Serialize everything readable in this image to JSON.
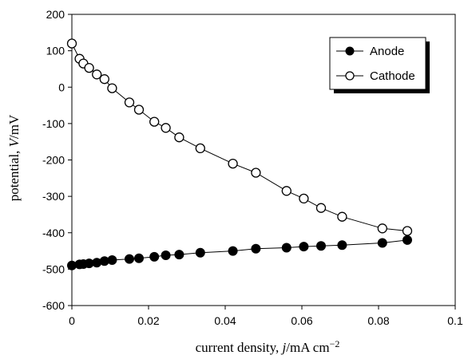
{
  "chart_data": {
    "type": "scatter",
    "title": "",
    "xlabel": "current density, j/mA cm⁻²",
    "xlabel_parts": {
      "prefix": "current density, ",
      "symbol": "j",
      "unit": "/mA cm",
      "exponent": "−2"
    },
    "ylabel": "potential, V/mV",
    "ylabel_parts": {
      "prefix": "potential, ",
      "symbol": "V",
      "unit": "/mV"
    },
    "xlim": [
      0,
      0.1
    ],
    "ylim": [
      -600,
      200
    ],
    "x_ticks": [
      0,
      0.02,
      0.04,
      0.06,
      0.08,
      0.1
    ],
    "x_tick_labels": [
      "0",
      "0.02",
      "0.04",
      "0.06",
      "0.08",
      "0.1"
    ],
    "y_ticks": [
      200,
      100,
      0,
      -100,
      -200,
      -300,
      -400,
      -500,
      -600
    ],
    "y_tick_labels": [
      "200",
      "100",
      "0",
      "-100",
      "-200",
      "-300",
      "-400",
      "-500",
      "-600"
    ],
    "grid": false,
    "legend_position": "top-right",
    "series": [
      {
        "name": "Anode",
        "marker": "filled-circle",
        "x": [
          0,
          0.002,
          0.003,
          0.0045,
          0.0065,
          0.0085,
          0.0105,
          0.015,
          0.0175,
          0.0215,
          0.0245,
          0.028,
          0.0335,
          0.042,
          0.048,
          0.056,
          0.0605,
          0.065,
          0.0705,
          0.081,
          0.0875
        ],
        "y": [
          -490,
          -487,
          -486,
          -484,
          -482,
          -478,
          -475,
          -472,
          -470,
          -466,
          -462,
          -460,
          -455,
          -450,
          -444,
          -441,
          -438,
          -436,
          -434,
          -428,
          -420
        ]
      },
      {
        "name": "Cathode",
        "marker": "open-circle",
        "x": [
          0,
          0.002,
          0.003,
          0.0045,
          0.0065,
          0.0085,
          0.0105,
          0.015,
          0.0175,
          0.0215,
          0.0245,
          0.028,
          0.0335,
          0.042,
          0.048,
          0.056,
          0.0605,
          0.065,
          0.0705,
          0.081,
          0.0875
        ],
        "y": [
          120,
          78,
          65,
          53,
          35,
          22,
          -3,
          -42,
          -62,
          -95,
          -112,
          -138,
          -168,
          -210,
          -235,
          -285,
          -306,
          -332,
          -356,
          -388,
          -395
        ]
      }
    ]
  }
}
